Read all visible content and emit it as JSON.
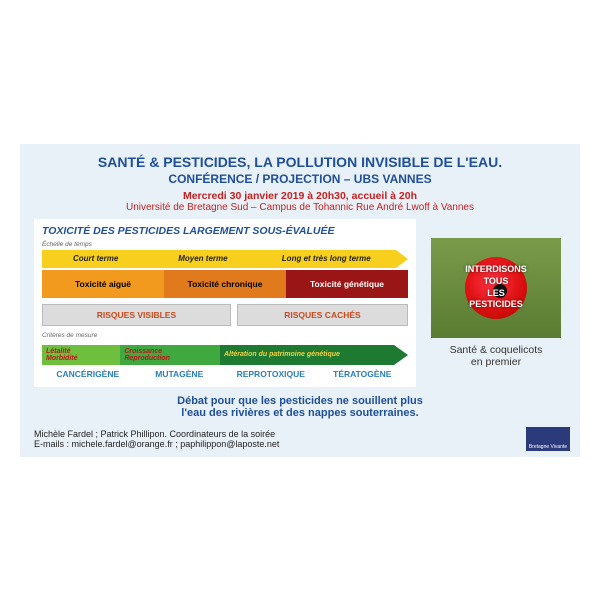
{
  "colors": {
    "page_bg": "#e8f1f8",
    "title": "#1f4f9a",
    "subtitle": "#1f4f9a",
    "date": "#c62020",
    "venue": "#c62020",
    "chart_title": "#1f4f9a",
    "yellow": "#f7cf1c",
    "orange": "#f29a1e",
    "dark_orange": "#e07a1c",
    "dark_red": "#9a1515",
    "white_text": "#ffffff",
    "risk_text": "#c94a1e",
    "green_light": "#6fbf3f",
    "green_mid": "#3fa83f",
    "green_dark": "#1d7a30",
    "blue_label": "#2b7fb8",
    "debate": "#1f4f9a",
    "logo_bg": "#2a3a7a",
    "seg_text_dark": "#222"
  },
  "title": "SANTÉ & PESTICIDES, LA POLLUTION INVISIBLE DE L'EAU.",
  "subtitle": "CONFÉRENCE / PROJECTION – UBS VANNES",
  "date": "Mercredi 30 janvier 2019 à 20h30, accueil à 20h",
  "venue": "Université de Bretagne Sud – Campus de Tohannic Rue André Lwoff à Vannes",
  "chart": {
    "title": "TOXICITÉ DES PESTICIDES LARGEMENT SOUS-ÉVALUÉE",
    "axis_top": "Échelle de temps",
    "time_segments": [
      {
        "label": "Court terme",
        "bg": "#f7cf1c",
        "color": "#222",
        "flex": 1
      },
      {
        "label": "Moyen terme",
        "bg": "#f7cf1c",
        "color": "#222",
        "flex": 1
      },
      {
        "label": "Long et très long terme",
        "bg": "#f7cf1c",
        "color": "#222",
        "flex": 1.3
      }
    ],
    "arrow_head_color": "#f7cf1c",
    "tox_cells": [
      {
        "label": "Toxicité aiguë",
        "bg": "#f29a1e",
        "color": "#000"
      },
      {
        "label": "Toxicité chronique",
        "bg": "#e07a1c",
        "color": "#000"
      },
      {
        "label": "Toxicité génétique",
        "bg": "#9a1515",
        "color": "#fff"
      }
    ],
    "risks": [
      {
        "label": "RISQUES VISIBLES",
        "flex": 1.05
      },
      {
        "label": "RISQUES CACHÉS",
        "flex": 0.95
      }
    ],
    "axis_mid": "Critères de mesure",
    "green_segments": [
      {
        "top": "Létalité",
        "bot": "Morbidité",
        "bg": "#6fbf3f",
        "color": "#b51a1a",
        "flex": 0.7
      },
      {
        "top": "Croissance",
        "bot": "Reproduction",
        "bg": "#3fa83f",
        "color": "#b51a1a",
        "flex": 0.9
      },
      {
        "top": "Altération du patrimoine génétique",
        "bot": "",
        "bg": "#1d7a30",
        "color": "#f5d142",
        "flex": 1.6
      }
    ],
    "green_head_color": "#1d7a30",
    "blue_labels": [
      "CANCÉRIGÈNE",
      "MUTAGÈNE",
      "REPROTOXIQUE",
      "TÉRATOGÈNE"
    ]
  },
  "side": {
    "overlay": [
      "INTERDISONS",
      "TOUS",
      "LES",
      "PESTICIDES"
    ],
    "caption_l1": "Santé & coquelicots",
    "caption_l2": "en premier"
  },
  "debate_l1": "Débat pour que les pesticides ne souillent plus",
  "debate_l2": "l'eau des rivières et des nappes souterraines.",
  "footer_l1": "Michèle Fardel ; Patrick Phillipon. Coordinateurs de la soirée",
  "footer_l2": "E-mails :  michele.fardel@orange.fr ; paphilippon@laposte.net",
  "logo_text": "Bretagne Vivante"
}
